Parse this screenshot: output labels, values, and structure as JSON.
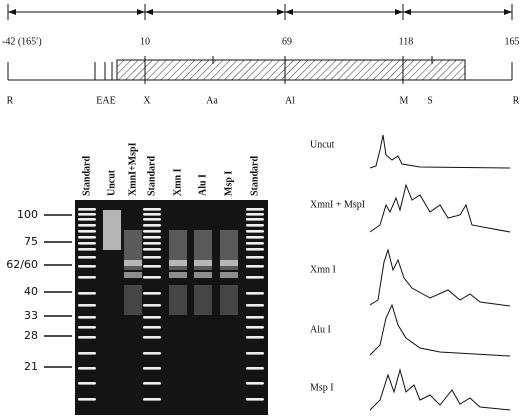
{
  "map": {
    "positions": [
      "-42 (165′)",
      "10",
      "69",
      "118",
      "165"
    ],
    "sites": [
      "R",
      "EAE",
      "X",
      "Aa",
      "Al",
      "M",
      "S",
      "R"
    ]
  },
  "gel": {
    "lanes": [
      "Standard",
      "Uncut",
      "XmnI+MspI",
      "Standard",
      "Xmn I",
      "Alu I",
      "Msp I",
      "Standard"
    ],
    "markers": [
      "100",
      "75",
      "62/60",
      "40",
      "33",
      "28",
      "21"
    ]
  },
  "traces": {
    "labels": [
      "Uncut",
      "XmnI + MspI",
      "Xmn I",
      "Alu I",
      "Msp I"
    ]
  }
}
